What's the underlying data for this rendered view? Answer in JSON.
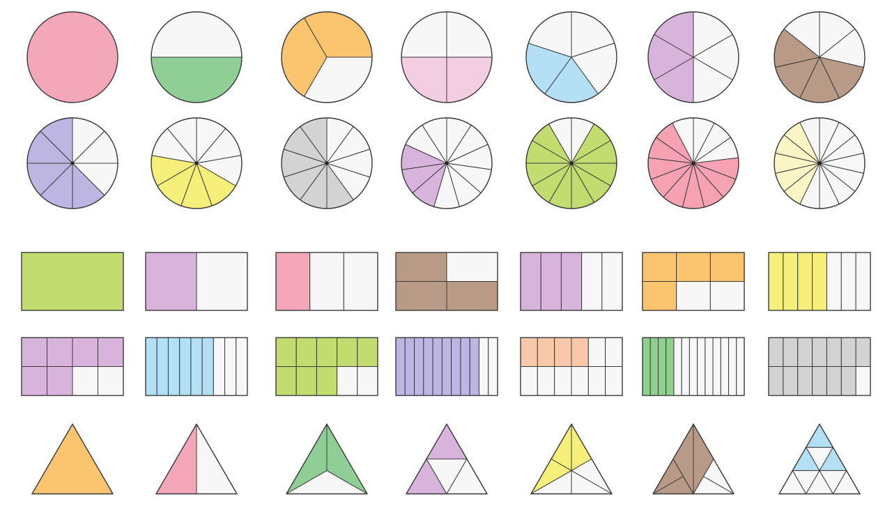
{
  "colors": {
    "outline": "#3a3a3a",
    "empty": "#f7f7f7",
    "pink": "#f4a7b9",
    "green": "#8fcf95",
    "orange": "#fbc46e",
    "light_pink": "#f3cde2",
    "light_blue": "#b4e0f5",
    "lavender": "#d8b4dc",
    "brown": "#b89a86",
    "periwinkle": "#bdb5e2",
    "yellow": "#f6ef7a",
    "gray": "#d3d3d3",
    "lime": "#c3dc6f",
    "salmon": "#f6a2b2",
    "cream": "#fbf5c6",
    "peach": "#f9c8aa",
    "mid_green": "#8fd08f"
  },
  "circles": [
    {
      "parts": 1,
      "shaded": [
        0
      ],
      "color": "pink"
    },
    {
      "parts": 2,
      "shaded": [
        1
      ],
      "color": "green"
    },
    {
      "parts": 3,
      "shaded": [
        1,
        2
      ],
      "color": "orange"
    },
    {
      "parts": 4,
      "shaded": [
        1,
        2
      ],
      "color": "light_pink"
    },
    {
      "parts": 5,
      "shaded": [
        2,
        3
      ],
      "color": "light_blue"
    },
    {
      "parts": 6,
      "shaded": [
        3,
        4,
        5
      ],
      "color": "lavender"
    },
    {
      "parts": 7,
      "shaded": [
        2,
        3,
        4,
        5
      ],
      "color": "brown"
    },
    {
      "parts": 8,
      "shaded": [
        3,
        4,
        5,
        6,
        7
      ],
      "color": "periwinkle"
    },
    {
      "parts": 9,
      "shaded": [
        3,
        4,
        5,
        6
      ],
      "color": "yellow"
    },
    {
      "parts": 10,
      "shaded": [
        4,
        5,
        6,
        7,
        8,
        9
      ],
      "color": "gray"
    },
    {
      "parts": 11,
      "shaded": [
        6,
        7,
        8
      ],
      "color": "lavender"
    },
    {
      "parts": 12,
      "shaded": [
        1,
        2,
        3,
        4,
        5,
        6,
        7,
        8,
        9,
        10
      ],
      "color": "lime"
    },
    {
      "parts": 13,
      "shaded": [
        3,
        4,
        5,
        6,
        7,
        8,
        9,
        10,
        11
      ],
      "color": "salmon"
    },
    {
      "parts": 14,
      "shaded": [
        8,
        9,
        10,
        11,
        12
      ],
      "color": "cream"
    }
  ],
  "rectangles": [
    {
      "cols": 1,
      "rows": 1,
      "shaded": [
        [
          0,
          0
        ]
      ],
      "color": "lime"
    },
    {
      "cols": 2,
      "rows": 1,
      "shaded": [
        [
          0,
          0
        ]
      ],
      "color": "lavender"
    },
    {
      "cols": 3,
      "rows": 1,
      "shaded": [
        [
          0,
          0
        ]
      ],
      "color": "pink"
    },
    {
      "cols": 2,
      "rows": 2,
      "shaded": [
        [
          0,
          0
        ],
        [
          0,
          1
        ],
        [
          1,
          1
        ]
      ],
      "color": "brown"
    },
    {
      "cols": 5,
      "rows": 1,
      "shaded": [
        [
          0,
          0
        ],
        [
          1,
          0
        ],
        [
          2,
          0
        ]
      ],
      "color": "lavender"
    },
    {
      "cols": 3,
      "rows": 2,
      "shaded": [
        [
          0,
          0
        ],
        [
          1,
          0
        ],
        [
          2,
          0
        ],
        [
          0,
          1
        ]
      ],
      "color": "orange"
    },
    {
      "cols": 7,
      "rows": 1,
      "shaded": [
        [
          0,
          0
        ],
        [
          1,
          0
        ],
        [
          2,
          0
        ],
        [
          3,
          0
        ]
      ],
      "color": "yellow"
    },
    {
      "cols": 4,
      "rows": 2,
      "shaded": [
        [
          0,
          0
        ],
        [
          1,
          0
        ],
        [
          2,
          0
        ],
        [
          3,
          0
        ],
        [
          0,
          1
        ],
        [
          1,
          1
        ]
      ],
      "color": "lavender"
    },
    {
      "cols": 9,
      "rows": 1,
      "shaded": [
        [
          0,
          0
        ],
        [
          1,
          0
        ],
        [
          2,
          0
        ],
        [
          3,
          0
        ],
        [
          4,
          0
        ],
        [
          5,
          0
        ]
      ],
      "color": "light_blue"
    },
    {
      "cols": 5,
      "rows": 2,
      "shaded": [
        [
          0,
          0
        ],
        [
          1,
          0
        ],
        [
          2,
          0
        ],
        [
          3,
          0
        ],
        [
          4,
          0
        ],
        [
          0,
          1
        ],
        [
          1,
          1
        ],
        [
          2,
          1
        ]
      ],
      "color": "lime"
    },
    {
      "cols": 11,
      "rows": 1,
      "shaded": [
        [
          0,
          0
        ],
        [
          1,
          0
        ],
        [
          2,
          0
        ],
        [
          3,
          0
        ],
        [
          4,
          0
        ],
        [
          5,
          0
        ],
        [
          6,
          0
        ],
        [
          7,
          0
        ],
        [
          8,
          0
        ]
      ],
      "color": "periwinkle"
    },
    {
      "cols": 6,
      "rows": 2,
      "shaded": [
        [
          0,
          0
        ],
        [
          1,
          0
        ],
        [
          2,
          0
        ],
        [
          3,
          0
        ]
      ],
      "color": "peach"
    },
    {
      "cols": 13,
      "rows": 1,
      "shaded": [
        [
          0,
          0
        ],
        [
          1,
          0
        ],
        [
          2,
          0
        ],
        [
          3,
          0
        ]
      ],
      "color": "mid_green"
    },
    {
      "cols": 7,
      "rows": 2,
      "shaded": [
        [
          0,
          0
        ],
        [
          1,
          0
        ],
        [
          2,
          0
        ],
        [
          3,
          0
        ],
        [
          4,
          0
        ],
        [
          5,
          0
        ],
        [
          6,
          0
        ],
        [
          0,
          1
        ],
        [
          1,
          1
        ],
        [
          2,
          1
        ],
        [
          3,
          1
        ],
        [
          4,
          1
        ],
        [
          5,
          1
        ]
      ],
      "color": "gray"
    }
  ],
  "triangles": [
    {
      "kind": "whole",
      "shaded": [
        0
      ],
      "color": "orange"
    },
    {
      "kind": "halves",
      "shaded": [
        0
      ],
      "color": "pink"
    },
    {
      "kind": "thirds",
      "shaded": [
        0,
        1
      ],
      "color": "green"
    },
    {
      "kind": "quarters",
      "shaded": [
        0,
        1
      ],
      "color": "lavender"
    },
    {
      "kind": "sixths",
      "shaded": [
        0,
        1,
        2
      ],
      "color": "yellow"
    },
    {
      "kind": "eighths",
      "shaded": [
        0,
        1,
        2,
        3,
        4
      ],
      "color": "brown"
    },
    {
      "kind": "ninths",
      "shaded": [
        0,
        1,
        2
      ],
      "color": "light_blue"
    }
  ]
}
